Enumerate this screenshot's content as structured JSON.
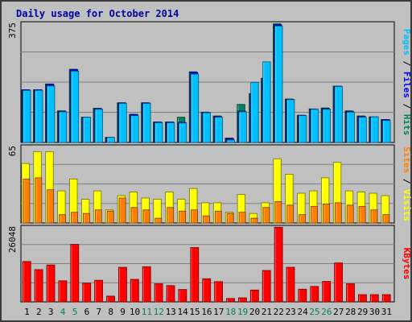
{
  "title": "Daily usage for October 2014",
  "colors": {
    "hits": "#00805c",
    "files": "#0000ff",
    "pages": "#00c0ff",
    "visits": "#ffff00",
    "sites": "#ff8000",
    "kbytes": "#ff0000",
    "weekend_day": "#00805c",
    "weekday": "#000000",
    "panel_bg": "#c0c0c0",
    "grid": "#808080"
  },
  "side_labels": {
    "top": [
      {
        "text": "Pages",
        "color": "#00c0ff"
      },
      {
        "text": " / ",
        "color": "#000000"
      },
      {
        "text": "Files",
        "color": "#0000ff"
      },
      {
        "text": " / ",
        "color": "#000000"
      },
      {
        "text": "Hits",
        "color": "#00805c"
      }
    ],
    "middle": [
      {
        "text": "Sites",
        "color": "#ff8000"
      },
      {
        "text": " / ",
        "color": "#000000"
      },
      {
        "text": "Visits",
        "color": "#ffff00"
      }
    ],
    "bottom": [
      {
        "text": "KBytes",
        "color": "#ff0000"
      }
    ]
  },
  "chart_data": {
    "type": "bar",
    "title": "Daily usage for October 2014",
    "categories": [
      "1",
      "2",
      "3",
      "4",
      "5",
      "6",
      "7",
      "8",
      "9",
      "10",
      "11",
      "12",
      "13",
      "14",
      "15",
      "16",
      "17",
      "18",
      "19",
      "20",
      "21",
      "22",
      "23",
      "24",
      "25",
      "26",
      "27",
      "28",
      "29",
      "30",
      "31"
    ],
    "weekend_days": [
      "4",
      "5",
      "11",
      "12",
      "18",
      "19",
      "25",
      "26"
    ],
    "panels": [
      {
        "name": "hits-files-pages",
        "ymax_label": "375",
        "ylim": [
          0,
          375
        ],
        "series": [
          {
            "name": "Hits",
            "color": "#00805c",
            "values": [
              165,
              165,
              183,
              99,
              229,
              79,
              107,
              16,
              124,
              88,
              124,
              64,
              64,
              79,
              221,
              95,
              83,
              14,
              119,
              153,
              201,
              371,
              136,
              85,
              105,
              108,
              176,
              99,
              83,
              80,
              72
            ]
          },
          {
            "name": "Files",
            "color": "#0000ff",
            "values": [
              165,
              165,
              182,
              98,
              228,
              79,
              106,
              16,
              124,
              88,
              124,
              64,
              64,
              63,
              219,
              94,
              81,
              12,
              98,
              152,
              200,
              368,
              135,
              85,
              104,
              106,
              176,
              97,
              81,
              80,
              72
            ]
          },
          {
            "name": "Pages",
            "color": "#00c0ff",
            "values": [
              163,
              163,
              177,
              96,
              223,
              79,
              104,
              16,
              122,
              84,
              122,
              62,
              62,
              61,
              214,
              93,
              79,
              8,
              96,
              188,
              252,
              364,
              134,
              84,
              104,
              104,
              175,
              95,
              79,
              80,
              69
            ]
          }
        ]
      },
      {
        "name": "visits-sites",
        "ymax_label": "65",
        "ylim": [
          0,
          65
        ],
        "series": [
          {
            "name": "Visits",
            "color": "#ffff00",
            "values": [
              50,
              60,
              60,
              27,
              37,
              20,
              27,
              11,
              23,
              26,
              21,
              20,
              26,
              20,
              29,
              17,
              17,
              9,
              24,
              8,
              17,
              54,
              41,
              25,
              27,
              38,
              51,
              27,
              26,
              25,
              23
            ]
          },
          {
            "name": "Sites",
            "color": "#ff8000",
            "values": [
              37,
              38,
              28,
              7,
              9,
              8,
              11,
              10,
              21,
              13,
              11,
              4,
              13,
              10,
              11,
              6,
              10,
              8,
              9,
              4,
              13,
              18,
              15,
              7,
              14,
              16,
              17,
              15,
              14,
              11,
              7
            ]
          }
        ]
      },
      {
        "name": "kbytes",
        "ymax_label": "26048",
        "ylim": [
          0,
          26048
        ],
        "series": [
          {
            "name": "KBytes",
            "color": "#ff0000",
            "values": [
              13900,
              11100,
              12700,
              7250,
              19800,
              6440,
              7440,
              1970,
              11900,
              7750,
              12100,
              6230,
              5600,
              4260,
              18700,
              7970,
              6970,
              1160,
              1390,
              4080,
              10800,
              25700,
              11900,
              4360,
              5310,
              7040,
              13400,
              6230,
              2490,
              2490,
              2490
            ]
          }
        ]
      }
    ]
  }
}
